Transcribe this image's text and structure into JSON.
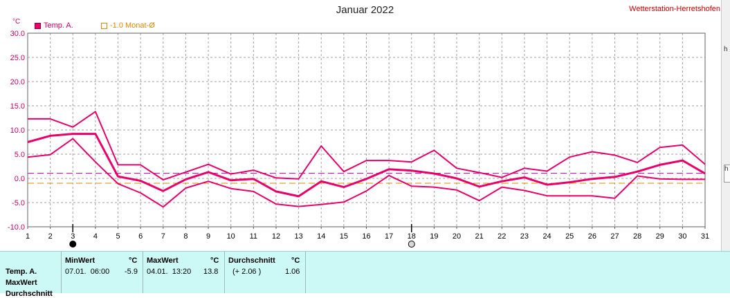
{
  "station_label": "Wetterstation-Herretshofen",
  "title": "Januar 2022",
  "unit_label": "°C",
  "legend": {
    "series1": "Temp. A.",
    "series2": "-1.0 Monat-Ø"
  },
  "right_edge": {
    "a": "h",
    "b": "h"
  },
  "colors": {
    "series": "#e8006a",
    "avg": "#d98a00",
    "ref": "#b000b0",
    "stats_bg": "#ccf8f6"
  },
  "chart_data": {
    "type": "line",
    "x": [
      1,
      2,
      3,
      4,
      5,
      6,
      7,
      8,
      9,
      10,
      11,
      12,
      13,
      14,
      15,
      16,
      17,
      18,
      19,
      20,
      21,
      22,
      23,
      24,
      25,
      26,
      27,
      28,
      29,
      30,
      31
    ],
    "xticks": [
      "1",
      "2",
      "3",
      "4",
      "5",
      "6",
      "7",
      "8",
      "9",
      "10",
      "11",
      "12",
      "13",
      "14",
      "15",
      "16",
      "17",
      "18",
      "19",
      "20",
      "21",
      "22",
      "23",
      "24",
      "25",
      "26",
      "27",
      "28",
      "29",
      "30",
      "31"
    ],
    "ylim": [
      -10,
      30
    ],
    "yticks": [
      "30.0",
      "25.0",
      "20.0",
      "15.0",
      "10.0",
      "5.0",
      "0.0",
      "-5.0",
      "-10.0"
    ],
    "grid": true,
    "series": [
      {
        "name": "Temp. A.",
        "values": [
          7.5,
          8.8,
          9.2,
          9.2,
          0.4,
          -0.5,
          -2.6,
          -0.2,
          1.3,
          -0.4,
          -0.1,
          -2.7,
          -3.7,
          -0.6,
          -1.8,
          -0.1,
          1.9,
          1.6,
          1.0,
          0.0,
          -1.7,
          -0.6,
          0.2,
          -1.3,
          -0.8,
          -0.1,
          0.3,
          1.4,
          2.8,
          3.7,
          1.0
        ]
      },
      {
        "values": [
          12.3,
          12.3,
          10.6,
          13.8,
          2.8,
          2.8,
          -0.3,
          1.3,
          2.9,
          0.9,
          1.7,
          0.1,
          -0.1,
          6.7,
          1.4,
          3.7,
          3.7,
          3.4,
          5.8,
          2.1,
          1.2,
          0.2,
          2.1,
          1.5,
          4.4,
          5.5,
          4.8,
          3.3,
          6.4,
          6.9,
          2.9
        ]
      },
      {
        "values": [
          4.4,
          4.9,
          8.2,
          3.4,
          -1.1,
          -3.0,
          -5.9,
          -2.0,
          -0.6,
          -2.1,
          -2.7,
          -5.3,
          -5.8,
          -5.4,
          -4.9,
          -2.6,
          0.6,
          -1.6,
          -1.8,
          -2.4,
          -4.6,
          -1.8,
          -2.5,
          -3.6,
          -3.6,
          -3.6,
          -4.1,
          0.5,
          -0.1,
          -0.2,
          -0.2
        ]
      }
    ],
    "reference_lines": [
      {
        "y": 1.06
      },
      {
        "name": "-1.0 Monat-Ø",
        "y": -1.0
      }
    ],
    "markers": [
      {
        "x": 3,
        "symbol": "filled-circle"
      },
      {
        "x": 18,
        "symbol": "open-circle"
      }
    ]
  },
  "stats": {
    "row_labels": [
      "Temp. A.",
      "MaxWert",
      "Durchschnitt"
    ],
    "min": {
      "header": "MinWert",
      "unit": "°C",
      "time": "07.01.  06:00",
      "value": "-5.9"
    },
    "max": {
      "header": "MaxWert",
      "unit": "°C",
      "time": "04.01.  13:20",
      "value": "13.8"
    },
    "avg": {
      "header": "Durchschnitt",
      "unit": "°C",
      "delta": "(+ 2.06 )",
      "value": "1.06"
    }
  }
}
